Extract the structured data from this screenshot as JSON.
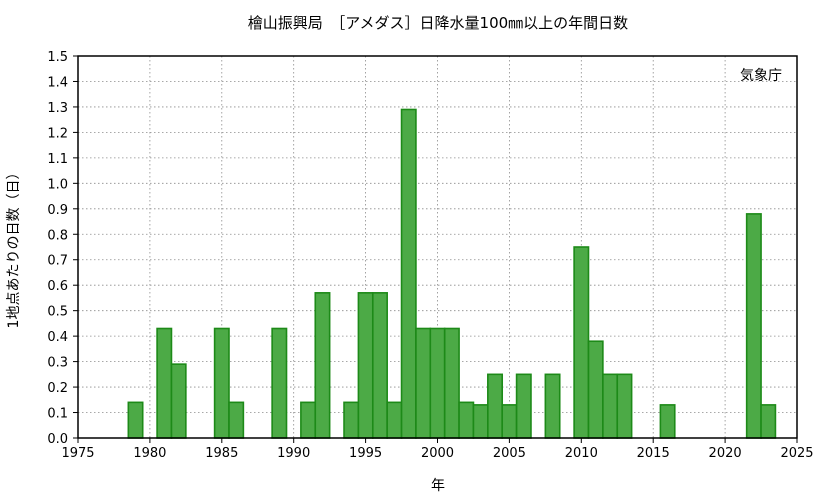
{
  "chart_data": {
    "type": "bar",
    "title": "檜山振興局　［アメダス］日降水量100㎜以上の年間日数",
    "xlabel": "年",
    "ylabel": "1地点あたりの日数（日）",
    "annotation": "気象庁",
    "xlim": [
      1975,
      2025
    ],
    "ylim": [
      0,
      1.5
    ],
    "xticks": [
      "1975",
      "1980",
      "1985",
      "1990",
      "1995",
      "2000",
      "2005",
      "2010",
      "2015",
      "2020",
      "2025"
    ],
    "yticks": [
      "0.0",
      "0.1",
      "0.2",
      "0.3",
      "0.4",
      "0.5",
      "0.6",
      "0.7",
      "0.8",
      "0.9",
      "1.0",
      "1.1",
      "1.2",
      "1.3",
      "1.4",
      "1.5"
    ],
    "grid": true,
    "bar_color": "#4caa46",
    "bar_edge_color": "#1d8a18",
    "x": [
      1979,
      1981,
      1982,
      1985,
      1986,
      1989,
      1991,
      1992,
      1994,
      1995,
      1996,
      1997,
      1998,
      1999,
      2000,
      2001,
      2002,
      2003,
      2004,
      2005,
      2006,
      2008,
      2010,
      2011,
      2012,
      2013,
      2016,
      2022,
      2023
    ],
    "values": [
      0.14,
      0.43,
      0.29,
      0.43,
      0.14,
      0.43,
      0.14,
      0.57,
      0.14,
      0.57,
      0.57,
      0.14,
      1.29,
      0.43,
      0.43,
      0.43,
      0.14,
      0.13,
      0.25,
      0.13,
      0.25,
      0.25,
      0.75,
      0.38,
      0.25,
      0.25,
      0.13,
      0.88,
      0.13
    ]
  }
}
